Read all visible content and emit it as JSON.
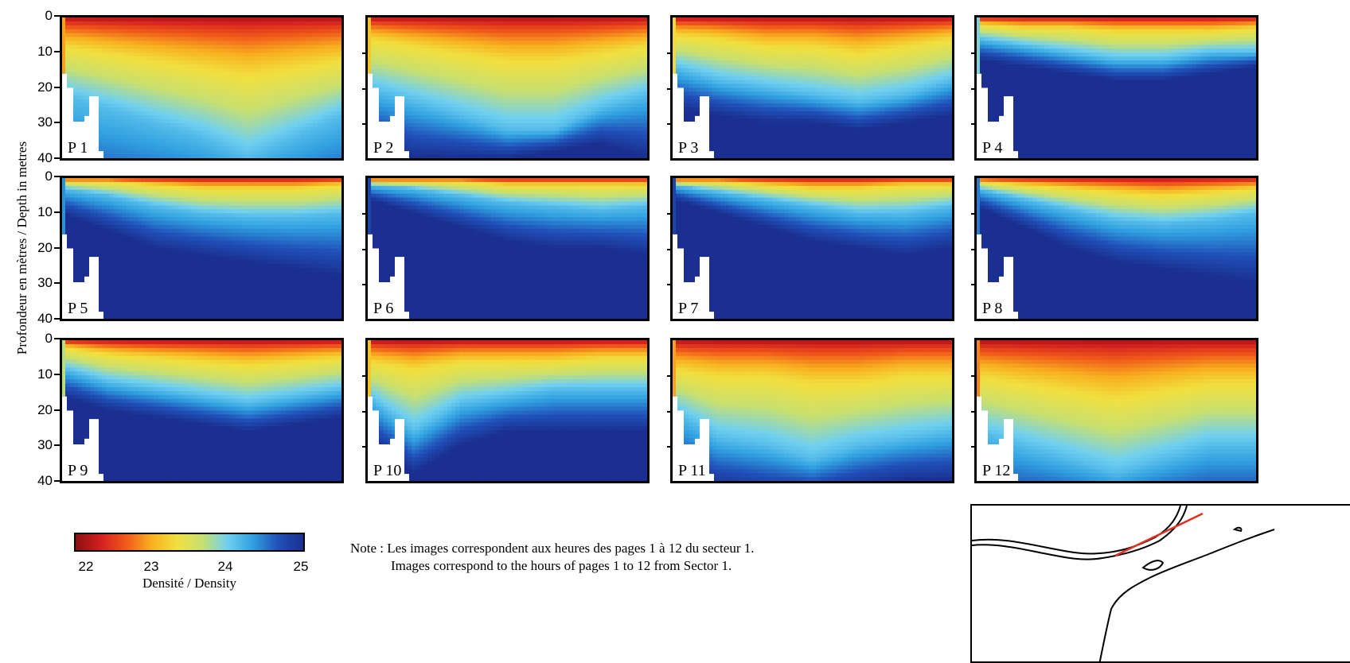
{
  "figure": {
    "ylabel": "Profondeur en mètres / Depth in metres",
    "note_line1": "Note : Les images correspondent aux heures des pages 1 à 12 du secteur 1.",
    "note_line2": "Images correspond to the hours of pages 1 to 12 from Sector 1.",
    "colorbar_title": "Densité / Density",
    "colorbar_ticks": [
      "22",
      "23",
      "24",
      "25"
    ],
    "y_ticks": [
      "0",
      "10",
      "20",
      "30",
      "40"
    ]
  },
  "colors": {
    "scale": [
      "#8b0f0f",
      "#d42020",
      "#f05a1a",
      "#f8b020",
      "#f0e040",
      "#c8e070",
      "#70d0f0",
      "#30a0e0",
      "#2050b8",
      "#1a2f8f"
    ],
    "frame": "#000000",
    "map_line": "#e03020"
  },
  "chart_data": {
    "type": "heatmap",
    "ylabel": "Profondeur en mètres / Depth in metres",
    "ylim": [
      0,
      40
    ],
    "y_inverted": true,
    "colorbar": {
      "label": "Densité / Density",
      "range": [
        21.5,
        25
      ],
      "ticks": [
        22,
        23,
        24,
        25
      ]
    },
    "panels": [
      {
        "label": "P 1",
        "isopycnal_depths": {
          "23": [
            8,
            10,
            12,
            14,
            16,
            14,
            12
          ],
          "24": [
            22,
            26,
            30,
            34,
            40,
            34,
            28
          ],
          "25": [
            60,
            60,
            60,
            60,
            60,
            60,
            60
          ]
        }
      },
      {
        "label": "P 2",
        "isopycnal_depths": {
          "23": [
            6,
            8,
            10,
            12,
            12,
            10,
            8
          ],
          "24": [
            20,
            24,
            28,
            32,
            32,
            26,
            22
          ],
          "25": [
            36,
            40,
            40,
            40,
            38,
            36,
            40
          ]
        }
      },
      {
        "label": "P 3",
        "isopycnal_depths": {
          "23": [
            5,
            6,
            8,
            8,
            10,
            8,
            6
          ],
          "24": [
            14,
            18,
            20,
            22,
            24,
            22,
            18
          ],
          "25": [
            26,
            28,
            30,
            30,
            32,
            30,
            28
          ]
        }
      },
      {
        "label": "P 4",
        "isopycnal_depths": {
          "23": [
            2,
            3,
            3,
            4,
            4,
            4,
            3
          ],
          "24": [
            6,
            8,
            10,
            12,
            12,
            10,
            10
          ],
          "25": [
            12,
            14,
            16,
            18,
            18,
            16,
            14
          ]
        }
      },
      {
        "label": "P 5",
        "isopycnal_depths": {
          "23": [
            1,
            1,
            2,
            3,
            3,
            3,
            2
          ],
          "24": [
            3,
            5,
            8,
            10,
            11,
            11,
            10
          ],
          "25": [
            10,
            15,
            20,
            22,
            24,
            26,
            28
          ]
        }
      },
      {
        "label": "P 6",
        "isopycnal_depths": {
          "23": [
            1,
            1,
            1,
            2,
            2,
            2,
            2
          ],
          "24": [
            2,
            3,
            5,
            7,
            8,
            9,
            8
          ],
          "25": [
            6,
            10,
            14,
            18,
            20,
            20,
            22
          ]
        }
      },
      {
        "label": "P 7",
        "isopycnal_depths": {
          "23": [
            1,
            1,
            2,
            3,
            3,
            2,
            2
          ],
          "24": [
            2,
            4,
            6,
            8,
            10,
            10,
            8
          ],
          "25": [
            6,
            10,
            14,
            18,
            20,
            22,
            20
          ]
        }
      },
      {
        "label": "P 8",
        "isopycnal_depths": {
          "23": [
            1,
            2,
            3,
            4,
            5,
            4,
            3
          ],
          "24": [
            3,
            6,
            9,
            12,
            13,
            12,
            10
          ],
          "25": [
            8,
            14,
            20,
            24,
            26,
            28,
            30
          ]
        }
      },
      {
        "label": "P 9",
        "isopycnal_depths": {
          "23": [
            2,
            4,
            5,
            6,
            7,
            6,
            5
          ],
          "24": [
            8,
            12,
            14,
            16,
            18,
            16,
            14
          ],
          "25": [
            16,
            20,
            22,
            24,
            26,
            24,
            22
          ]
        }
      },
      {
        "label": "P 10",
        "isopycnal_depths": {
          "23": [
            6,
            8,
            6,
            6,
            6,
            5,
            5
          ],
          "24": [
            16,
            26,
            18,
            16,
            14,
            14,
            14
          ],
          "25": [
            28,
            38,
            30,
            26,
            26,
            26,
            26
          ]
        }
      },
      {
        "label": "P 11",
        "isopycnal_depths": {
          "23": [
            8,
            10,
            10,
            12,
            12,
            10,
            10
          ],
          "24": [
            20,
            28,
            30,
            34,
            30,
            28,
            26
          ],
          "25": [
            40,
            42,
            44,
            44,
            42,
            40,
            40
          ]
        }
      },
      {
        "label": "P 12",
        "isopycnal_depths": {
          "23": [
            10,
            12,
            14,
            16,
            14,
            12,
            12
          ],
          "24": [
            26,
            30,
            34,
            38,
            34,
            30,
            30
          ],
          "25": [
            50,
            50,
            50,
            50,
            50,
            50,
            50
          ]
        }
      }
    ]
  },
  "map": {
    "description_items": [
      "coastline",
      "transect line"
    ]
  }
}
